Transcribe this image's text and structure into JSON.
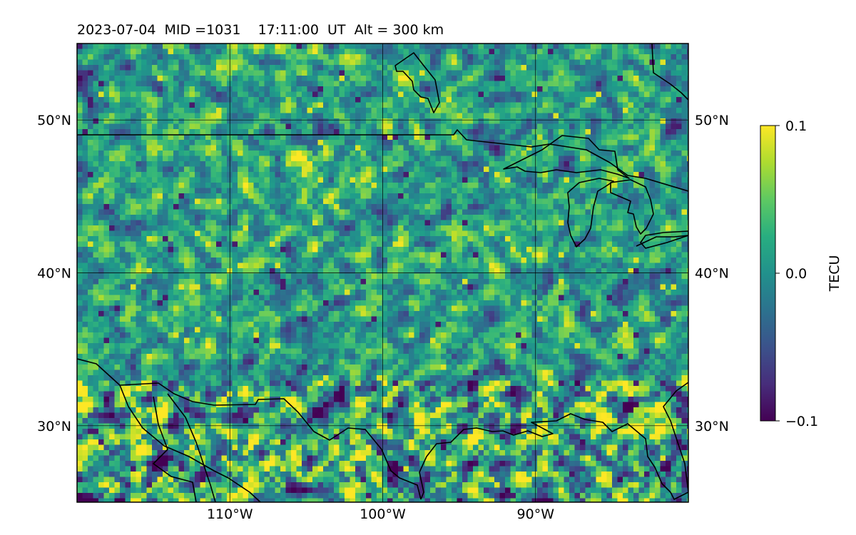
{
  "chart_data": {
    "type": "heatmap",
    "title": "2023-07-04  MID =1031    17:11:00  UT  Alt = 300 km",
    "xlabel": "",
    "ylabel": "",
    "x_range": [
      -120,
      -80
    ],
    "y_range": [
      25,
      55
    ],
    "x_ticks": [
      {
        "value": -110,
        "label": "110°W"
      },
      {
        "value": -100,
        "label": "100°W"
      },
      {
        "value": -90,
        "label": "90°W"
      }
    ],
    "y_ticks": [
      {
        "value": 30,
        "label": "30°N"
      },
      {
        "value": 40,
        "label": "40°N"
      },
      {
        "value": 50,
        "label": "50°N"
      }
    ],
    "grid": true,
    "colormap": "viridis",
    "colorbar": {
      "label": "TECU",
      "min": -0.1,
      "max": 0.1,
      "ticks": [
        {
          "value": 0.1,
          "label": "0.1"
        },
        {
          "value": 0.0,
          "label": "0.0"
        },
        {
          "value": -0.1,
          "label": "−0.1"
        }
      ],
      "placement": "right"
    },
    "value_description": "Detrended TEC perturbation field, mostly near 0.0 TECU with scattered positive (yellow) and negative (purple) cells, stronger variability south of 32°N.",
    "colors": {
      "coastline": "#000000",
      "grid": "#000000"
    }
  }
}
